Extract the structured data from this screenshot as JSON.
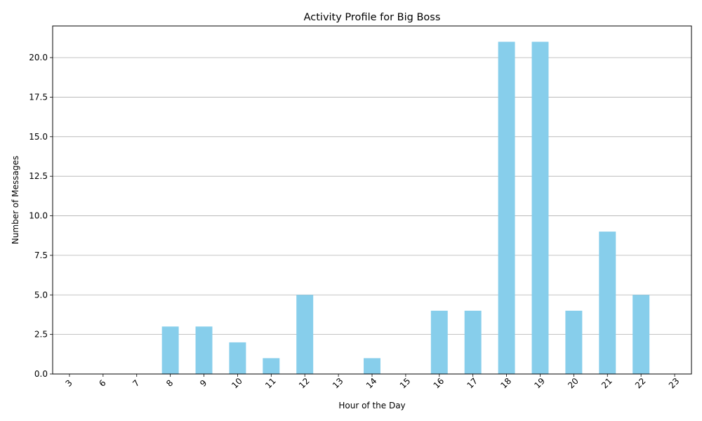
{
  "chart_data": {
    "type": "bar",
    "title": "Activity Profile for Big Boss",
    "xlabel": "Hour of the Day",
    "ylabel": "Number of Messages",
    "categories": [
      "3",
      "6",
      "7",
      "8",
      "9",
      "10",
      "11",
      "12",
      "13",
      "14",
      "15",
      "16",
      "17",
      "18",
      "19",
      "20",
      "21",
      "22",
      "23"
    ],
    "values": [
      0,
      0,
      0,
      3,
      3,
      2,
      1,
      5,
      0,
      1,
      0,
      4,
      4,
      21,
      21,
      4,
      9,
      5,
      0
    ],
    "ylim": [
      0,
      22
    ],
    "yticks": [
      "0.0",
      "2.5",
      "5.0",
      "7.5",
      "10.0",
      "12.5",
      "15.0",
      "17.5",
      "20.0"
    ],
    "ytick_values": [
      0,
      2.5,
      5,
      7.5,
      10,
      12.5,
      15,
      17.5,
      20
    ],
    "grid": "y",
    "bar_color": "#87ceeb",
    "xtick_rotation_deg": 45
  }
}
